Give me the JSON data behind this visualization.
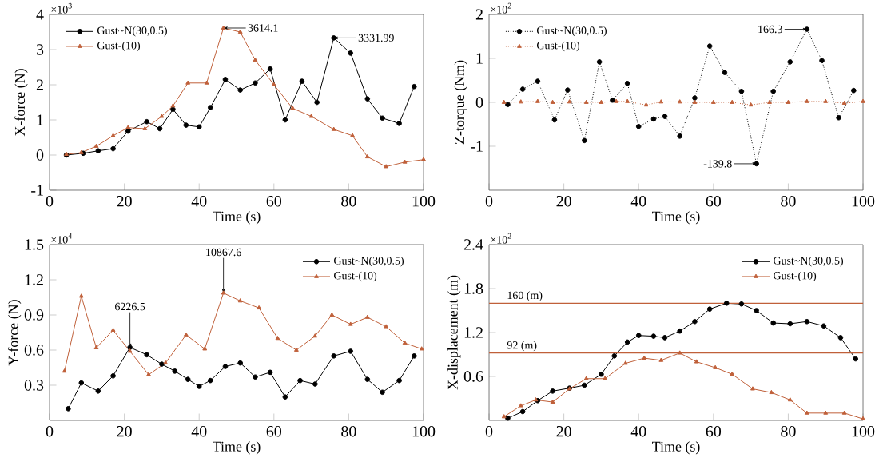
{
  "chart_data": [
    {
      "type": "line",
      "xlabel": "Time (s)",
      "ylabel": "X-force (N)",
      "xlim": [
        0,
        100
      ],
      "xticks": [
        0,
        20,
        40,
        60,
        80,
        100
      ],
      "ylim": [
        -1,
        4
      ],
      "yticks": [
        -1,
        0,
        1,
        2,
        3,
        4
      ],
      "legend": "top left",
      "annotations": [
        "×10$^{3}$",
        {
          "text": "3614.1",
          "x": 46.5,
          "y": 3.6141
        },
        {
          "text": "3331.99",
          "x": 76,
          "y": 3.33199
        }
      ],
      "series": [
        {
          "name": "Gust~N(30,0.5)",
          "color": "#000000",
          "marker": "circle",
          "line_style": "solid",
          "x": [
            4.5,
            9,
            13,
            17,
            21,
            26,
            29.5,
            33,
            36.5,
            40,
            43,
            47,
            51,
            55,
            59,
            63,
            67.5,
            71.5,
            76,
            80.5,
            85,
            89,
            93.5,
            97.5
          ],
          "values": [
            0,
            0.05,
            0.12,
            0.18,
            0.68,
            0.95,
            0.75,
            1.3,
            0.85,
            0.8,
            1.35,
            2.15,
            1.85,
            2.05,
            2.45,
            1.0,
            2.1,
            1.5,
            3.33199,
            2.9,
            1.6,
            1.05,
            0.9,
            1.95
          ]
        },
        {
          "name": "Gust-(10)",
          "color": "#c0603a",
          "marker": "triangle",
          "line_style": "solid",
          "x": [
            4.5,
            8.5,
            12.5,
            17,
            21,
            25.5,
            30,
            33,
            37,
            42,
            46.5,
            51,
            55,
            60,
            65,
            70,
            76,
            81,
            85,
            90,
            95,
            100
          ],
          "values": [
            0.02,
            0.07,
            0.25,
            0.55,
            0.78,
            0.75,
            1.1,
            1.4,
            2.05,
            2.05,
            3.6141,
            3.5,
            2.7,
            2.0,
            1.33,
            1.1,
            0.73,
            0.55,
            -0.05,
            -0.33,
            -0.2,
            -0.13
          ]
        }
      ]
    },
    {
      "type": "line",
      "xlabel": "Time (s)",
      "ylabel": "Z-torque (Nm)",
      "xlim": [
        0,
        100
      ],
      "xticks": [
        0,
        20,
        40,
        60,
        80,
        100
      ],
      "ylim": [
        -2,
        2
      ],
      "yticks": [
        -1,
        0,
        1,
        2
      ],
      "legend": "top left",
      "annotations": [
        "×10$^{2}$",
        {
          "text": "166.3",
          "x": 85,
          "y": 1.663
        },
        {
          "text": "-139.8",
          "x": 71.5,
          "y": -1.398
        }
      ],
      "series": [
        {
          "name": "Gust~N(30,0.5)",
          "color": "#000000",
          "marker": "circle",
          "line_style": "dotted",
          "x": [
            5,
            9,
            13,
            17.5,
            21,
            25.5,
            29.5,
            33,
            37,
            40,
            44,
            47,
            51,
            55,
            59,
            63,
            67.5,
            71.5,
            76,
            80.5,
            85,
            89,
            93.5,
            97.5
          ],
          "values": [
            -0.05,
            0.3,
            0.48,
            -0.4,
            0.28,
            -0.87,
            0.92,
            0.05,
            0.43,
            -0.55,
            -0.38,
            -0.32,
            -0.77,
            0.1,
            1.28,
            0.68,
            0.25,
            -1.398,
            0.25,
            0.92,
            1.663,
            0.95,
            -0.35,
            0.27
          ]
        },
        {
          "name": "Gust-(10)",
          "color": "#c0603a",
          "marker": "triangle",
          "line_style": "dotted",
          "x": [
            4,
            8.5,
            13,
            17,
            21.5,
            26,
            30,
            34,
            37,
            42,
            46,
            51,
            55,
            60,
            65,
            70,
            75,
            80,
            85,
            90,
            95,
            100
          ],
          "values": [
            0,
            0.01,
            0.02,
            0,
            0.01,
            0,
            0,
            0.02,
            0.02,
            -0.06,
            0.01,
            0.01,
            0,
            0,
            0,
            -0.06,
            0,
            0,
            0.02,
            0.02,
            -0.02,
            0.02
          ]
        }
      ]
    },
    {
      "type": "line",
      "xlabel": "Time (s)",
      "ylabel": "Y-force (N)",
      "xlim": [
        0,
        100
      ],
      "xticks": [
        0,
        20,
        40,
        60,
        80,
        100
      ],
      "ylim": [
        0,
        1.5
      ],
      "yticks": [
        0.3,
        0.6,
        0.9,
        1.2,
        1.5
      ],
      "legend": "top right",
      "annotations": [
        "×10$^{4}$",
        {
          "text": "6226.5",
          "x": 21.5,
          "y": 0.62265
        },
        {
          "text": "10867.6",
          "x": 46.5,
          "y": 1.08676
        }
      ],
      "series": [
        {
          "name": "Gust~N(30,0.5)",
          "color": "#000000",
          "marker": "circle",
          "line_style": "solid",
          "x": [
            5,
            8.5,
            13,
            17,
            21.5,
            26,
            30,
            33.5,
            37,
            40,
            43,
            47,
            51,
            55,
            59,
            63,
            67,
            71,
            76,
            80.5,
            85,
            89,
            93.5,
            97.5
          ],
          "values": [
            0.1,
            0.32,
            0.25,
            0.38,
            0.62265,
            0.56,
            0.48,
            0.42,
            0.35,
            0.29,
            0.34,
            0.46,
            0.49,
            0.37,
            0.41,
            0.2,
            0.34,
            0.31,
            0.55,
            0.59,
            0.35,
            0.24,
            0.34,
            0.55
          ]
        },
        {
          "name": "Gust-(10)",
          "color": "#c0603a",
          "marker": "triangle",
          "line_style": "solid",
          "x": [
            4,
            8.5,
            12.5,
            17,
            21.5,
            26.5,
            31,
            36.5,
            41.5,
            46.5,
            51,
            56,
            61,
            66,
            71,
            75.5,
            80.5,
            85,
            90,
            95,
            99.5
          ],
          "values": [
            0.42,
            1.06,
            0.62,
            0.77,
            0.59,
            0.39,
            0.49,
            0.73,
            0.61,
            1.08676,
            1.02,
            0.96,
            0.7,
            0.6,
            0.72,
            0.9,
            0.82,
            0.88,
            0.8,
            0.66,
            0.61
          ]
        }
      ]
    },
    {
      "type": "line",
      "xlabel": "Time (s)",
      "ylabel": "X-displacement (m)",
      "xlim": [
        0,
        100
      ],
      "xticks": [
        0,
        20,
        40,
        60,
        80,
        100
      ],
      "ylim": [
        0,
        2.4
      ],
      "yticks": [
        0.6,
        1.2,
        1.8,
        2.4
      ],
      "legend": "top right",
      "annotations": [
        "×10$^{2}$"
      ],
      "ref_lines": [
        {
          "axis": "y",
          "value": 1.6,
          "label": "160 (m)",
          "color": "#c0603a"
        },
        {
          "axis": "y",
          "value": 0.92,
          "label": "92 (m)",
          "color": "#c0603a"
        }
      ],
      "series": [
        {
          "name": "Gust~N(30,0.5)",
          "color": "#000000",
          "marker": "circle",
          "line_style": "solid",
          "x": [
            5,
            9,
            13,
            17,
            21.5,
            25.5,
            30,
            33.5,
            37,
            40,
            44,
            47,
            51,
            55,
            59,
            63.5,
            67.5,
            71.5,
            76,
            80.5,
            85,
            89.5,
            94,
            98
          ],
          "values": [
            0.03,
            0.12,
            0.27,
            0.4,
            0.44,
            0.48,
            0.63,
            0.88,
            1.07,
            1.16,
            1.15,
            1.13,
            1.22,
            1.35,
            1.52,
            1.6,
            1.59,
            1.5,
            1.33,
            1.32,
            1.35,
            1.29,
            1.13,
            0.84
          ]
        },
        {
          "name": "Gust-(10)",
          "color": "#c0603a",
          "marker": "triangle",
          "line_style": "solid",
          "x": [
            4,
            8.5,
            12.5,
            17,
            21.5,
            26,
            31,
            36.5,
            41.5,
            46,
            51,
            55.5,
            60.5,
            65,
            70.5,
            75.5,
            80.5,
            85,
            90,
            95,
            100
          ],
          "values": [
            0.05,
            0.2,
            0.28,
            0.25,
            0.43,
            0.57,
            0.57,
            0.78,
            0.85,
            0.82,
            0.92,
            0.8,
            0.72,
            0.63,
            0.43,
            0.38,
            0.28,
            0.1,
            0.1,
            0.1,
            0.02
          ]
        }
      ]
    }
  ]
}
